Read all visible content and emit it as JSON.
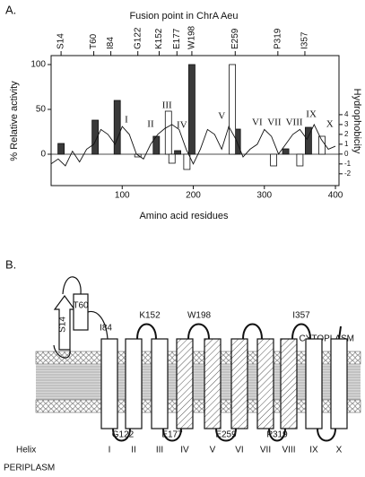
{
  "chart_data": {
    "type": "bar",
    "panel_label": "A.",
    "title": "Fusion point in ChrA Aeu",
    "x_label": "Amino acid residues",
    "y_label": "% Relative activity",
    "y2_label": "Hydrophobicity",
    "xlim": [
      0,
      405
    ],
    "xticks": [
      100,
      200,
      300,
      400
    ],
    "ylim": [
      -35,
      110
    ],
    "yticks": [
      0,
      50,
      100
    ],
    "y2lim": [
      -3.2,
      10
    ],
    "y2ticks": [
      -2,
      -1,
      0,
      1,
      2,
      3,
      4
    ],
    "top_ticks": [
      {
        "value": 14,
        "label": "S14"
      },
      {
        "value": 60,
        "label": "T60"
      },
      {
        "value": 84,
        "label": "I84"
      },
      {
        "value": 122,
        "label": "G122"
      },
      {
        "value": 152,
        "label": "K152"
      },
      {
        "value": 177,
        "label": "E177"
      },
      {
        "value": 198,
        "label": "W198"
      },
      {
        "value": 259,
        "label": "E259"
      },
      {
        "value": 319,
        "label": "P319"
      },
      {
        "value": 357,
        "label": "I357"
      }
    ],
    "series": [
      {
        "color": "#3a3a3a",
        "x": [
          14,
          62,
          93,
          148,
          178,
          198,
          262,
          330,
          362
        ],
        "values": [
          12,
          38,
          60,
          20,
          4,
          100,
          28,
          6,
          30
        ]
      },
      {
        "color": "#ffffff",
        "x": [
          122,
          165,
          170,
          191,
          255,
          313,
          350,
          381
        ],
        "values": [
          -3,
          48,
          -10,
          -17,
          100,
          -13,
          -13,
          20
        ]
      },
      {
        "type": "line",
        "axis": "y2",
        "color": "#111111",
        "x": [
          0,
          10,
          20,
          30,
          40,
          50,
          60,
          70,
          80,
          90,
          100,
          110,
          120,
          130,
          140,
          150,
          160,
          170,
          180,
          190,
          200,
          210,
          220,
          230,
          240,
          250,
          260,
          270,
          280,
          290,
          300,
          310,
          320,
          330,
          340,
          350,
          360,
          370,
          380,
          390,
          400
        ],
        "values": [
          -1,
          -0.5,
          -1.2,
          0.3,
          -0.8,
          0.5,
          1,
          2.5,
          2,
          1,
          2.8,
          2,
          0,
          -0.5,
          1,
          2,
          2.6,
          3,
          2.5,
          0.5,
          -1,
          0.5,
          2.5,
          2,
          0.5,
          2.8,
          1.5,
          -0.3,
          0.5,
          1,
          2.5,
          1.8,
          0,
          1,
          2,
          2.5,
          1.5,
          3,
          1.5,
          0.5,
          0.8
        ]
      }
    ],
    "annotations": [
      {
        "text": "I",
        "x": 106,
        "y": 38
      },
      {
        "text": "II",
        "x": 140,
        "y": 33
      },
      {
        "text": "III",
        "x": 163,
        "y": 54
      },
      {
        "text": "IV",
        "x": 184,
        "y": 32
      },
      {
        "text": "V",
        "x": 240,
        "y": 42
      },
      {
        "text": "VI",
        "x": 290,
        "y": 35
      },
      {
        "text": "VII",
        "x": 314,
        "y": 35
      },
      {
        "text": "VIII",
        "x": 342,
        "y": 35
      },
      {
        "text": "IX",
        "x": 366,
        "y": 44
      },
      {
        "text": "X",
        "x": 392,
        "y": 33
      }
    ]
  },
  "diagram": {
    "panel_label": "B.",
    "cytoplasm": "CYTOPLASM",
    "periplasm": "PERIPLASM",
    "helix_title": "Helix",
    "helices": [
      "I",
      "II",
      "III",
      "IV",
      "V",
      "VI",
      "VII",
      "VIII",
      "IX",
      "X"
    ],
    "top_sites": [
      "S14",
      "T60",
      "I84",
      "K152",
      "W198",
      "I357"
    ],
    "bottom_sites": [
      "G122",
      "E177",
      "E259",
      "P319"
    ]
  }
}
